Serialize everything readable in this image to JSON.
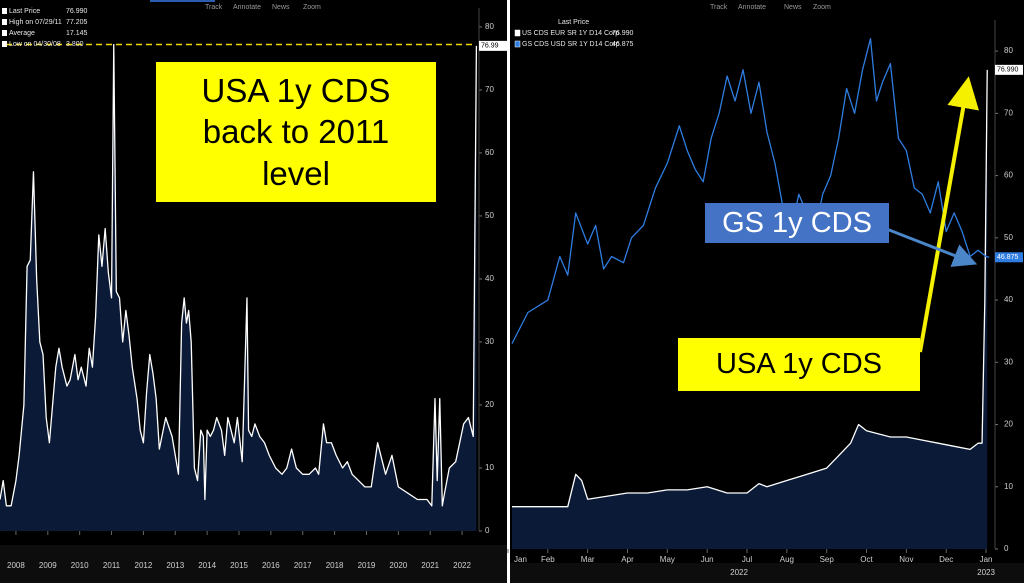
{
  "chart_data": [
    {
      "type": "line",
      "toolbar": [
        "Track",
        "Annotate",
        "News",
        "Zoom"
      ],
      "legend_stats": [
        {
          "name": "Last Price",
          "text": "76.990"
        },
        {
          "name": "High on 07/29/11",
          "text": "77.205"
        },
        {
          "name": "Average",
          "text": "17.145"
        },
        {
          "name": "Low on 04/30/08",
          "text": "3.800"
        }
      ],
      "annotations": [
        {
          "text": "USA 1y CDS back to 2011 level"
        }
      ],
      "xlim": [
        2008,
        2023
      ],
      "xticks": [
        {
          "value": 2008.5,
          "label": "2008"
        },
        {
          "value": 2009.5,
          "label": "2009"
        },
        {
          "value": 2010.5,
          "label": "2010"
        },
        {
          "value": 2011.5,
          "label": "2011"
        },
        {
          "value": 2012.5,
          "label": "2012"
        },
        {
          "value": 2013.5,
          "label": "2013"
        },
        {
          "value": 2014.5,
          "label": "2014"
        },
        {
          "value": 2015.5,
          "label": "2015"
        },
        {
          "value": 2016.5,
          "label": "2016"
        },
        {
          "value": 2017.5,
          "label": "2017"
        },
        {
          "value": 2018.5,
          "label": "2018"
        },
        {
          "value": 2019.5,
          "label": "2019"
        },
        {
          "value": 2020.5,
          "label": "2020"
        },
        {
          "value": 2021.5,
          "label": "2021"
        },
        {
          "value": 2022.5,
          "label": "2022"
        }
      ],
      "ylim": [
        0,
        83
      ],
      "yticks": [
        0,
        10,
        20,
        30,
        40,
        50,
        60,
        70,
        80
      ],
      "reference_line": {
        "value": 77.205,
        "color": "#f2d600"
      },
      "series": [
        {
          "color": "#ffffff",
          "fill": "#0b1a36",
          "tag": {
            "value": 76.99,
            "label": "76.99"
          },
          "x": [
            2008.0,
            2008.1,
            2008.2,
            2008.35,
            2008.5,
            2008.6,
            2008.75,
            2008.85,
            2008.95,
            2009.05,
            2009.15,
            2009.25,
            2009.35,
            2009.45,
            2009.55,
            2009.65,
            2009.75,
            2009.85,
            2009.95,
            2010.1,
            2010.2,
            2010.35,
            2010.45,
            2010.55,
            2010.7,
            2010.8,
            2010.9,
            2011.0,
            2011.1,
            2011.2,
            2011.3,
            2011.4,
            2011.5,
            2011.57,
            2011.65,
            2011.75,
            2011.85,
            2011.95,
            2012.05,
            2012.15,
            2012.3,
            2012.4,
            2012.5,
            2012.6,
            2012.7,
            2012.8,
            2012.9,
            2013.0,
            2013.2,
            2013.4,
            2013.6,
            2013.7,
            2013.78,
            2013.85,
            2013.92,
            2014.0,
            2014.1,
            2014.2,
            2014.3,
            2014.38,
            2014.43,
            2014.5,
            2014.6,
            2014.7,
            2014.8,
            2014.95,
            2015.05,
            2015.15,
            2015.25,
            2015.35,
            2015.45,
            2015.6,
            2015.75,
            2015.8,
            2015.9,
            2016.0,
            2016.15,
            2016.3,
            2016.45,
            2016.65,
            2016.85,
            2017.0,
            2017.15,
            2017.3,
            2017.5,
            2017.7,
            2017.9,
            2018.0,
            2018.15,
            2018.25,
            2018.4,
            2018.55,
            2018.75,
            2018.9,
            2019.05,
            2019.25,
            2019.45,
            2019.65,
            2019.85,
            2020.0,
            2020.1,
            2020.3,
            2020.5,
            2020.8,
            2021.1,
            2021.4,
            2021.55,
            2021.65,
            2021.72,
            2021.8,
            2021.88,
            2021.95,
            2022.1,
            2022.3,
            2022.55,
            2022.7,
            2022.85,
            2022.95
          ],
          "values": [
            5,
            8,
            4,
            4,
            8,
            12,
            20,
            42,
            43,
            57,
            40,
            30,
            28,
            18,
            14,
            20,
            26,
            29,
            26,
            23,
            24,
            28,
            24,
            26,
            23,
            29,
            26,
            34,
            47,
            42,
            48,
            41,
            37,
            77.2,
            38,
            37,
            30,
            35,
            31,
            26,
            21,
            16,
            14,
            22,
            28,
            25,
            21,
            13,
            18,
            15,
            9,
            33,
            37,
            33,
            35,
            30,
            10,
            8,
            16,
            15,
            5,
            16,
            15,
            16,
            18,
            16,
            12,
            18,
            16,
            14,
            18,
            11,
            37,
            16,
            15,
            17,
            15,
            14,
            12,
            10,
            9,
            10,
            13,
            10,
            9,
            9,
            10,
            9,
            17,
            14,
            14,
            12,
            10,
            11,
            9,
            8,
            7,
            7,
            14,
            11,
            9,
            12,
            7,
            6,
            5,
            5,
            4,
            21,
            8,
            21,
            4,
            6,
            10,
            11,
            17,
            18,
            15,
            76.99
          ]
        }
      ]
    },
    {
      "type": "line",
      "toolbar": [
        "Track",
        "Annotate",
        "News",
        "Zoom"
      ],
      "legend_title": "Last Price",
      "annotations": [
        {
          "text": "GS 1y CDS"
        },
        {
          "text": "USA 1y CDS"
        }
      ],
      "xlim": [
        0,
        12.2
      ],
      "xticks": [
        {
          "value": 0,
          "label": "Jan"
        },
        {
          "value": 1,
          "label": "Feb"
        },
        {
          "value": 2,
          "label": "Mar"
        },
        {
          "value": 3,
          "label": "Apr"
        },
        {
          "value": 4,
          "label": "May"
        },
        {
          "value": 5,
          "label": "Jun"
        },
        {
          "value": 6,
          "label": "Jul"
        },
        {
          "value": 7,
          "label": "Aug"
        },
        {
          "value": 8,
          "label": "Sep"
        },
        {
          "value": 9,
          "label": "Oct"
        },
        {
          "value": 10,
          "label": "Nov"
        },
        {
          "value": 11,
          "label": "Dec"
        },
        {
          "value": 12,
          "label": "Jan"
        }
      ],
      "x_year_labels": [
        {
          "value": 5.8,
          "label": "2022"
        },
        {
          "value": 12,
          "label": "2023"
        }
      ],
      "ylim": [
        0,
        85
      ],
      "yticks": [
        0,
        10,
        20,
        30,
        40,
        50,
        60,
        70,
        80
      ],
      "series": [
        {
          "name": "US CDS EUR SR 1Y D14 Corp",
          "color": "#ffffff",
          "fill": "#0b1a36",
          "tag": {
            "value": 76.99,
            "label": "76.990"
          },
          "x": [
            0.1,
            1.5,
            1.7,
            1.85,
            2.0,
            2.5,
            3.0,
            3.5,
            4.0,
            4.5,
            5.0,
            5.5,
            6.0,
            6.3,
            6.5,
            7.0,
            7.5,
            8.0,
            8.3,
            8.6,
            8.8,
            9.0,
            9.3,
            9.6,
            10.0,
            10.4,
            10.8,
            11.2,
            11.6,
            11.8,
            11.9,
            11.97,
            12.03
          ],
          "values": [
            6.8,
            6.8,
            12,
            11,
            8,
            8.5,
            9,
            9,
            9.5,
            9.5,
            10,
            9,
            9,
            10.5,
            10,
            11,
            12,
            13,
            15,
            17,
            20,
            19,
            18.5,
            18,
            18,
            17.5,
            17,
            16.5,
            16,
            17,
            17,
            40,
            76.99
          ]
        },
        {
          "name": "GS CDS USD SR 1Y D14 Corp",
          "color": "#2f7de1",
          "tag": {
            "value": 46.875,
            "label": "46.875"
          },
          "x": [
            0.1,
            0.5,
            1,
            1.3,
            1.5,
            1.7,
            2.0,
            2.2,
            2.4,
            2.6,
            2.9,
            3.1,
            3.4,
            3.7,
            4.0,
            4.3,
            4.5,
            4.7,
            4.9,
            5.1,
            5.3,
            5.5,
            5.7,
            5.9,
            6.1,
            6.3,
            6.5,
            6.7,
            6.9,
            7.1,
            7.3,
            7.5,
            7.7,
            7.9,
            8.1,
            8.3,
            8.5,
            8.7,
            8.9,
            9.1,
            9.25,
            9.4,
            9.6,
            9.8,
            10.0,
            10.2,
            10.4,
            10.6,
            10.8,
            11.0,
            11.2,
            11.4,
            11.6,
            11.8,
            12.0,
            12.08
          ],
          "values": [
            33,
            38,
            40,
            47,
            44,
            54,
            49,
            52,
            45,
            47,
            46,
            50,
            52,
            58,
            62,
            68,
            64,
            61,
            59,
            66,
            70,
            76,
            72,
            77,
            70,
            75,
            67,
            62,
            55,
            51,
            57,
            54,
            51,
            57,
            60,
            66,
            74,
            70,
            77,
            82,
            72,
            75,
            78,
            66,
            64,
            58,
            57,
            54,
            59,
            51,
            54,
            51,
            47,
            48,
            47,
            46.875
          ]
        }
      ]
    }
  ]
}
